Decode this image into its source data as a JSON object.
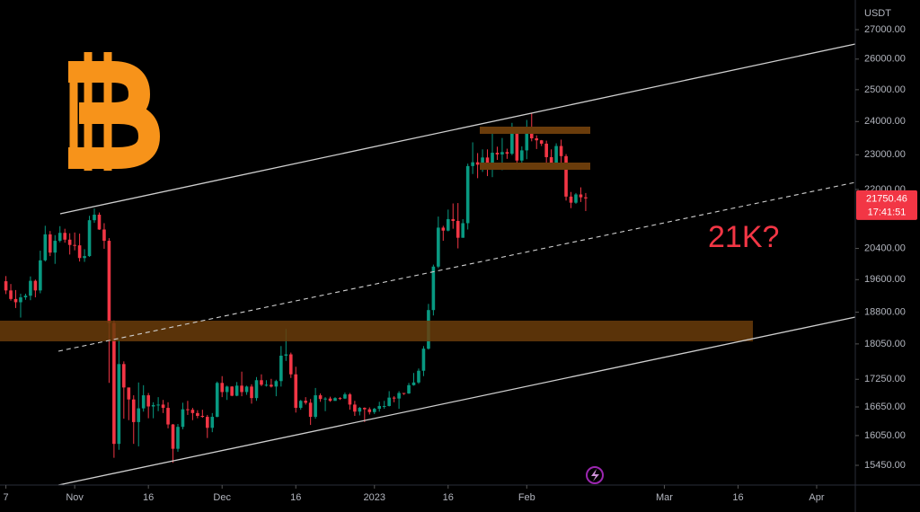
{
  "chart_data": {
    "type": "candlestick",
    "log_scale": true,
    "y_axis_label": "USDT",
    "annotation": "21K?",
    "last_price": 21750.46,
    "countdown": "17:41:51",
    "up_color": "#089981",
    "down_color": "#f23645",
    "xlim": [
      -15.2,
      158.5
    ],
    "xticks": [
      {
        "value": -14,
        "label": "7"
      },
      {
        "value": 0,
        "label": "Nov"
      },
      {
        "value": 15,
        "label": "16"
      },
      {
        "value": 30,
        "label": "Dec"
      },
      {
        "value": 45,
        "label": "16"
      },
      {
        "value": 61,
        "label": "2023"
      },
      {
        "value": 76,
        "label": "16"
      },
      {
        "value": 92,
        "label": "Feb"
      },
      {
        "value": 120,
        "label": "Mar"
      },
      {
        "value": 135,
        "label": "16"
      },
      {
        "value": 151,
        "label": "Apr"
      }
    ],
    "ylim": [
      15064,
      28045
    ],
    "yticks": [
      {
        "value": 27000,
        "label": "27000.00"
      },
      {
        "value": 26000,
        "label": "26000.00"
      },
      {
        "value": 25000,
        "label": "25000.00"
      },
      {
        "value": 24000,
        "label": "24000.00"
      },
      {
        "value": 23000,
        "label": "23000.00"
      },
      {
        "value": 22000,
        "label": "22000.00"
      },
      {
        "value": 20400,
        "label": "20400.00"
      },
      {
        "value": 19600,
        "label": "19600.00"
      },
      {
        "value": 18800,
        "label": "18800.00"
      },
      {
        "value": 18050,
        "label": "18050.00"
      },
      {
        "value": 17250,
        "label": "17250.00"
      },
      {
        "value": 16650,
        "label": "16650.00"
      },
      {
        "value": 16050,
        "label": "16050.00"
      },
      {
        "value": 15450,
        "label": "15450.00"
      }
    ],
    "x": [
      -14,
      -13,
      -12,
      -11,
      -10,
      -9,
      -8,
      -7,
      -6,
      -5,
      -4,
      -3,
      -2,
      -1,
      0,
      1,
      2,
      3,
      4,
      5,
      6,
      7,
      8,
      9,
      10,
      11,
      12,
      13,
      14,
      15,
      16,
      17,
      18,
      19,
      20,
      21,
      22,
      23,
      24,
      25,
      26,
      27,
      28,
      29,
      30,
      31,
      32,
      33,
      34,
      35,
      36,
      37,
      38,
      39,
      40,
      41,
      42,
      43,
      44,
      45,
      46,
      47,
      48,
      49,
      50,
      51,
      52,
      53,
      54,
      55,
      56,
      57,
      58,
      59,
      60,
      61,
      62,
      63,
      64,
      65,
      66,
      67,
      68,
      69,
      70,
      71,
      72,
      73,
      74,
      75,
      76,
      77,
      78,
      79,
      80,
      81,
      82,
      83,
      84,
      85,
      86,
      87,
      88,
      89,
      90,
      91,
      92,
      93,
      94,
      95,
      96,
      97,
      98,
      99,
      100,
      101,
      102,
      103,
      104
    ],
    "open": [
      19560,
      19330,
      19120,
      19040,
      19160,
      19200,
      19570,
      19330,
      20090,
      20770,
      20290,
      20600,
      20810,
      20630,
      20490,
      20480,
      20150,
      20200,
      21150,
      21300,
      20900,
      20600,
      18540,
      15880,
      17590,
      17070,
      16810,
      16330,
      16620,
      16900,
      16660,
      16690,
      16700,
      16630,
      16280,
      15780,
      16230,
      16600,
      16590,
      16520,
      16460,
      16440,
      16210,
      16440,
      17170,
      16970,
      17090,
      16890,
      17110,
      16970,
      17090,
      16840,
      17230,
      17130,
      17130,
      17090,
      17210,
      17780,
      17810,
      17360,
      16630,
      16780,
      16740,
      16440,
      16900,
      16820,
      16830,
      16780,
      16840,
      16830,
      16920,
      16700,
      16550,
      16630,
      16600,
      16540,
      16610,
      16670,
      16670,
      16850,
      16830,
      16950,
      16940,
      17120,
      17180,
      17440,
      17940,
      18850,
      19930,
      20950,
      20870,
      21180,
      21130,
      20680,
      21070,
      22670,
      22780,
      22710,
      22920,
      22630,
      23060,
      23010,
      23080,
      23030,
      23740,
      22830,
      23130,
      23730,
      23490,
      23430,
      23330,
      22930,
      22760,
      23260,
      22960,
      21800,
      21630,
      21860,
      21780
    ],
    "high": [
      19690,
      19490,
      19340,
      19250,
      19250,
      19680,
      19600,
      20340,
      21000,
      20860,
      20750,
      20990,
      20920,
      20800,
      20820,
      20790,
      20380,
      21270,
      21470,
      21360,
      21070,
      20670,
      18600,
      18150,
      17650,
      17070,
      16900,
      17180,
      17120,
      16950,
      16750,
      16860,
      16800,
      16750,
      16290,
      16290,
      16740,
      16780,
      16630,
      16580,
      16590,
      16480,
      16520,
      17200,
      17320,
      17110,
      17100,
      17190,
      17420,
      17110,
      17140,
      17300,
      17360,
      17230,
      17260,
      17240,
      18000,
      18400,
      17850,
      17530,
      16800,
      16860,
      16820,
      17060,
      16940,
      16860,
      16870,
      16860,
      16860,
      16960,
      16950,
      16780,
      16650,
      16640,
      16640,
      16630,
      16760,
      16780,
      16990,
      16880,
      16990,
      16950,
      17170,
      17390,
      17490,
      18000,
      19000,
      19980,
      21250,
      21000,
      21440,
      21610,
      21620,
      21180,
      22740,
      23370,
      23050,
      23160,
      23160,
      23800,
      23240,
      23500,
      23180,
      23960,
      23780,
      23250,
      24050,
      24250,
      23580,
      23440,
      23420,
      23160,
      23340,
      23450,
      23020,
      21930,
      21900,
      22060,
      21900
    ],
    "low": [
      19240,
      19080,
      18900,
      18670,
      19100,
      19090,
      19160,
      19260,
      20060,
      20200,
      20000,
      20560,
      20550,
      20240,
      20350,
      20060,
      20050,
      20180,
      21080,
      20890,
      20390,
      17170,
      15600,
      15760,
      16400,
      16370,
      15880,
      15830,
      16550,
      16410,
      16410,
      16560,
      16520,
      16200,
      15500,
      15720,
      16180,
      16480,
      16370,
      16410,
      16420,
      16000,
      16120,
      16430,
      16860,
      16800,
      16880,
      16880,
      16880,
      16910,
      16720,
      16780,
      17100,
      17090,
      17070,
      16880,
      17090,
      17660,
      17280,
      16530,
      16590,
      16700,
      16270,
      16400,
      16760,
      16560,
      16760,
      16780,
      16800,
      16820,
      16590,
      16460,
      16470,
      16330,
      16490,
      16500,
      16550,
      16610,
      16660,
      16750,
      16610,
      16910,
      16930,
      17110,
      17150,
      17320,
      17920,
      18720,
      19890,
      20600,
      20850,
      20920,
      20400,
      20680,
      20900,
      22440,
      22320,
      22500,
      22380,
      22350,
      22850,
      22550,
      22880,
      22990,
      22560,
      22740,
      22870,
      23400,
      23170,
      23260,
      22770,
      22640,
      22760,
      22690,
      21690,
      21480,
      21600,
      21650,
      21400
    ],
    "close": [
      19330,
      19120,
      19040,
      19160,
      19200,
      19570,
      19330,
      20090,
      20770,
      20290,
      20600,
      20810,
      20630,
      20490,
      20480,
      20150,
      20200,
      21150,
      21300,
      20900,
      20600,
      18540,
      15880,
      17590,
      17070,
      16810,
      16330,
      16620,
      16900,
      16660,
      16690,
      16700,
      16630,
      16280,
      15780,
      16230,
      16600,
      16590,
      16520,
      16460,
      16440,
      16210,
      16440,
      17170,
      16970,
      17090,
      16890,
      17110,
      16970,
      17090,
      16840,
      17230,
      17130,
      17130,
      17090,
      17210,
      17780,
      17810,
      17360,
      16630,
      16780,
      16740,
      16440,
      16900,
      16820,
      16830,
      16780,
      16840,
      16830,
      16920,
      16700,
      16550,
      16630,
      16600,
      16540,
      16610,
      16670,
      16670,
      16850,
      16830,
      16950,
      16940,
      17120,
      17180,
      17440,
      17940,
      18850,
      19930,
      20950,
      20870,
      21180,
      21130,
      20680,
      21070,
      22670,
      22780,
      22710,
      22920,
      22630,
      23060,
      23010,
      23080,
      23030,
      23740,
      22830,
      23130,
      23730,
      23490,
      23430,
      23330,
      22930,
      22760,
      23260,
      22960,
      21800,
      21630,
      21860,
      21780,
      21750
    ]
  }
}
